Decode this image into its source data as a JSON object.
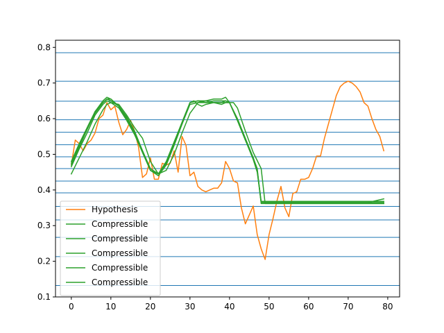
{
  "chart_data": {
    "type": "line",
    "title": "",
    "xlabel": "",
    "ylabel": "",
    "xlim": [
      -4,
      83
    ],
    "ylim": [
      0.1,
      0.82
    ],
    "xticks": [
      0,
      10,
      20,
      30,
      40,
      50,
      60,
      70,
      80
    ],
    "yticks": [
      0.1,
      0.2,
      0.3,
      0.4,
      0.5,
      0.6,
      0.7,
      0.8
    ],
    "grid": false,
    "legend_position": "lower-left",
    "hlines": {
      "color": "#1f77b4",
      "y": [
        0.132,
        0.213,
        0.267,
        0.316,
        0.354,
        0.392,
        0.425,
        0.46,
        0.493,
        0.527,
        0.562,
        0.597,
        0.649,
        0.705,
        0.785
      ]
    },
    "series": [
      {
        "name": "Hypothesis",
        "color": "#ff7f0e",
        "x": [
          0,
          1,
          2,
          3,
          4,
          5,
          6,
          7,
          8,
          9,
          10,
          11,
          12,
          13,
          14,
          15,
          16,
          17,
          18,
          19,
          20,
          21,
          22,
          23,
          24,
          25,
          26,
          27,
          28,
          29,
          30,
          31,
          32,
          33,
          34,
          35,
          36,
          37,
          38,
          39,
          40,
          41,
          42,
          43,
          44,
          45,
          46,
          47,
          48,
          49,
          50,
          51,
          52,
          53,
          54,
          55,
          56,
          57,
          58,
          59,
          60,
          61,
          62,
          63,
          64,
          65,
          66,
          67,
          68,
          69,
          70,
          71,
          72,
          73,
          74,
          75,
          76,
          77,
          78,
          79
        ],
        "y": [
          0.47,
          0.54,
          0.53,
          0.51,
          0.53,
          0.54,
          0.56,
          0.6,
          0.61,
          0.645,
          0.625,
          0.635,
          0.59,
          0.555,
          0.57,
          0.595,
          0.565,
          0.52,
          0.435,
          0.445,
          0.49,
          0.43,
          0.43,
          0.475,
          0.47,
          0.475,
          0.51,
          0.45,
          0.55,
          0.525,
          0.44,
          0.45,
          0.41,
          0.4,
          0.395,
          0.4,
          0.405,
          0.405,
          0.42,
          0.48,
          0.46,
          0.425,
          0.42,
          0.35,
          0.305,
          0.33,
          0.355,
          0.275,
          0.235,
          0.205,
          0.275,
          0.32,
          0.37,
          0.41,
          0.35,
          0.325,
          0.39,
          0.395,
          0.43,
          0.43,
          0.435,
          0.46,
          0.495,
          0.495,
          0.545,
          0.585,
          0.625,
          0.665,
          0.69,
          0.7,
          0.705,
          0.7,
          0.69,
          0.675,
          0.645,
          0.635,
          0.6,
          0.57,
          0.55,
          0.51
        ]
      },
      {
        "name": "Compressible",
        "color": "#2ca02c",
        "x": [
          0,
          2,
          4,
          6,
          8,
          9,
          10,
          12,
          14,
          16,
          18,
          20,
          22,
          24,
          26,
          28,
          30,
          32,
          34,
          36,
          38,
          39,
          40,
          42,
          44,
          46,
          47,
          48,
          50,
          55,
          60,
          65,
          70,
          75,
          79
        ],
        "y": [
          0.47,
          0.52,
          0.57,
          0.615,
          0.645,
          0.655,
          0.655,
          0.635,
          0.6,
          0.56,
          0.51,
          0.46,
          0.445,
          0.475,
          0.53,
          0.585,
          0.645,
          0.65,
          0.65,
          0.645,
          0.645,
          0.645,
          0.645,
          0.6,
          0.545,
          0.49,
          0.455,
          0.365,
          0.365,
          0.365,
          0.365,
          0.365,
          0.365,
          0.365,
          0.375
        ]
      },
      {
        "name": "Compressible",
        "color": "#2ca02c",
        "x": [
          0,
          2,
          4,
          6,
          8,
          9,
          10,
          12,
          14,
          16,
          18,
          20,
          22,
          24,
          26,
          28,
          30,
          31,
          32,
          33,
          34,
          36,
          38,
          39,
          40,
          42,
          44,
          46,
          47,
          48,
          50,
          55,
          60,
          65,
          70,
          75,
          79
        ],
        "y": [
          0.48,
          0.53,
          0.575,
          0.62,
          0.65,
          0.66,
          0.655,
          0.635,
          0.605,
          0.565,
          0.51,
          0.455,
          0.445,
          0.48,
          0.535,
          0.59,
          0.645,
          0.65,
          0.64,
          0.635,
          0.64,
          0.645,
          0.645,
          0.65,
          0.645,
          0.595,
          0.54,
          0.49,
          0.46,
          0.362,
          0.362,
          0.362,
          0.362,
          0.362,
          0.362,
          0.362,
          0.362
        ]
      },
      {
        "name": "Compressible",
        "color": "#2ca02c",
        "x": [
          0,
          2,
          4,
          6,
          8,
          9,
          10,
          12,
          14,
          16,
          18,
          20,
          22,
          24,
          26,
          28,
          30,
          32,
          34,
          36,
          38,
          39,
          40,
          42,
          44,
          46,
          47,
          48,
          50,
          55,
          60,
          65,
          70,
          75,
          79
        ],
        "y": [
          0.465,
          0.515,
          0.56,
          0.61,
          0.64,
          0.65,
          0.645,
          0.63,
          0.595,
          0.555,
          0.505,
          0.455,
          0.44,
          0.47,
          0.525,
          0.585,
          0.64,
          0.645,
          0.65,
          0.655,
          0.655,
          0.66,
          0.645,
          0.595,
          0.54,
          0.485,
          0.45,
          0.365,
          0.365,
          0.365,
          0.365,
          0.365,
          0.365,
          0.365,
          0.365
        ]
      },
      {
        "name": "Compressible",
        "color": "#2ca02c",
        "x": [
          0,
          2,
          4,
          6,
          8,
          9,
          10,
          12,
          14,
          16,
          18,
          20,
          22,
          24,
          26,
          28,
          30,
          32,
          34,
          36,
          38,
          39,
          40,
          41,
          42,
          44,
          46,
          48,
          49,
          50,
          55,
          60,
          65,
          70,
          75,
          79
        ],
        "y": [
          0.445,
          0.49,
          0.535,
          0.585,
          0.625,
          0.64,
          0.645,
          0.64,
          0.61,
          0.575,
          0.545,
          0.48,
          0.445,
          0.455,
          0.5,
          0.56,
          0.615,
          0.645,
          0.645,
          0.645,
          0.64,
          0.645,
          0.645,
          0.645,
          0.63,
          0.565,
          0.505,
          0.46,
          0.362,
          0.362,
          0.362,
          0.362,
          0.362,
          0.362,
          0.362,
          0.362
        ]
      },
      {
        "name": "Compressible",
        "color": "#2ca02c",
        "x": [
          0,
          2,
          4,
          6,
          8,
          9,
          10,
          12,
          14,
          16,
          18,
          20,
          22,
          24,
          26,
          28,
          30,
          32,
          34,
          36,
          38,
          39,
          40,
          42,
          44,
          46,
          47,
          48,
          50,
          55,
          60,
          65,
          70,
          75,
          79
        ],
        "y": [
          0.475,
          0.525,
          0.57,
          0.62,
          0.645,
          0.655,
          0.65,
          0.635,
          0.6,
          0.56,
          0.505,
          0.455,
          0.445,
          0.475,
          0.53,
          0.59,
          0.645,
          0.65,
          0.645,
          0.65,
          0.65,
          0.65,
          0.645,
          0.595,
          0.54,
          0.49,
          0.455,
          0.368,
          0.368,
          0.368,
          0.368,
          0.368,
          0.368,
          0.368,
          0.368
        ]
      }
    ]
  }
}
